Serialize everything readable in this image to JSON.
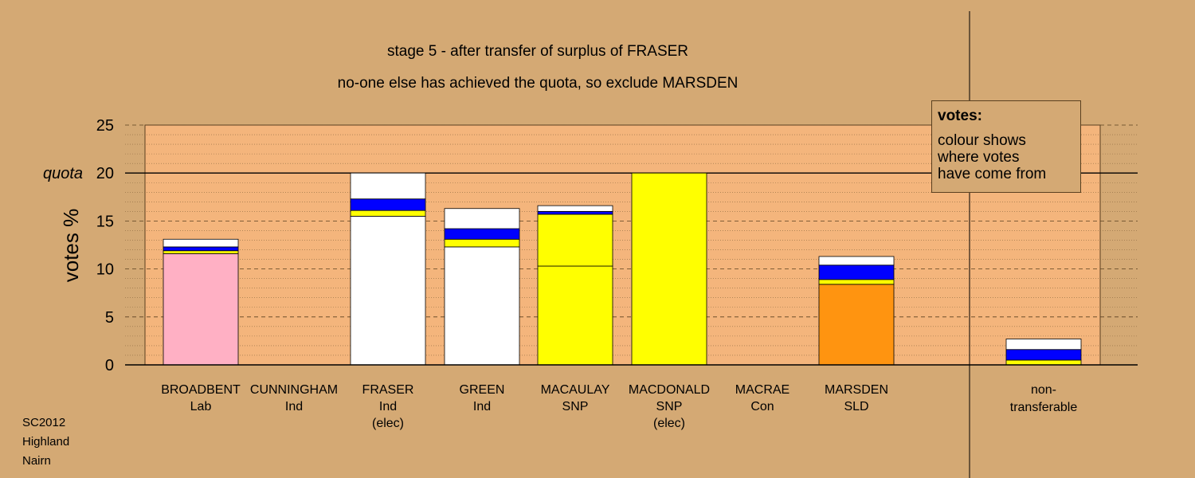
{
  "titles": {
    "line1": "stage 5 - after transfer of surplus of FRASER",
    "line2": "no-one else has achieved the quota, so exclude MARSDEN"
  },
  "legend": {
    "heading": "votes:",
    "body": "colour shows\nwhere votes\nhave come from"
  },
  "footer": [
    "SC2012",
    "Highland",
    "Nairn"
  ],
  "colors": {
    "background": "#d4a974",
    "plot_area": "#f4b57c",
    "Lab": "#ffb0c4",
    "Ind": "#ffffff",
    "SNP": "#ffff00",
    "SLD": "#ff9410",
    "transfer_blue": "#0000ff"
  },
  "chart_data": {
    "type": "bar",
    "stacked": true,
    "ylabel": "votes %",
    "ylim": [
      0,
      25
    ],
    "yticks": [
      0,
      5,
      10,
      15,
      20,
      25
    ],
    "quota": {
      "label": "quota",
      "value": 20
    },
    "grid": "dashed",
    "candidates": [
      {
        "name": "BROADBENT",
        "party": "Lab",
        "note": "",
        "segments": [
          {
            "value": 11.6,
            "color": "#ffb0c4"
          },
          {
            "value": 0.3,
            "color": "#ffff00"
          },
          {
            "value": 0.4,
            "color": "#0000ff"
          },
          {
            "value": 0.8,
            "color": "#ffffff"
          }
        ]
      },
      {
        "name": "CUNNINGHAM",
        "party": "Ind",
        "note": "",
        "segments": []
      },
      {
        "name": "FRASER",
        "party": "Ind",
        "note": "(elec)",
        "segments": [
          {
            "value": 15.5,
            "color": "#ffffff"
          },
          {
            "value": 0.6,
            "color": "#ffff00"
          },
          {
            "value": 1.2,
            "color": "#0000ff"
          },
          {
            "value": 2.7,
            "color": "#ffffff"
          }
        ]
      },
      {
        "name": "GREEN",
        "party": "Ind",
        "note": "",
        "segments": [
          {
            "value": 12.3,
            "color": "#ffffff"
          },
          {
            "value": 0.8,
            "color": "#ffff00"
          },
          {
            "value": 1.1,
            "color": "#0000ff"
          },
          {
            "value": 2.1,
            "color": "#ffffff"
          }
        ]
      },
      {
        "name": "MACAULAY",
        "party": "SNP",
        "note": "",
        "segments": [
          {
            "value": 10.3,
            "color": "#ffff00"
          },
          {
            "value": 5.4,
            "color": "#ffff00"
          },
          {
            "value": 0.3,
            "color": "#0000ff"
          },
          {
            "value": 0.6,
            "color": "#ffffff"
          }
        ]
      },
      {
        "name": "MACDONALD",
        "party": "SNP",
        "note": "(elec)",
        "segments": [
          {
            "value": 20.0,
            "color": "#ffff00"
          }
        ]
      },
      {
        "name": "MACRAE",
        "party": "Con",
        "note": "",
        "segments": []
      },
      {
        "name": "MARSDEN",
        "party": "SLD",
        "note": "",
        "segments": [
          {
            "value": 8.4,
            "color": "#ff9410"
          },
          {
            "value": 0.5,
            "color": "#ffff00"
          },
          {
            "value": 1.5,
            "color": "#0000ff"
          },
          {
            "value": 0.9,
            "color": "#ffffff"
          }
        ]
      }
    ],
    "non_transferable": {
      "label_line1": "non-",
      "label_line2": "transferable",
      "segments": [
        {
          "value": 0.5,
          "color": "#ffff00"
        },
        {
          "value": 1.1,
          "color": "#0000ff"
        },
        {
          "value": 1.1,
          "color": "#ffffff"
        }
      ]
    }
  }
}
